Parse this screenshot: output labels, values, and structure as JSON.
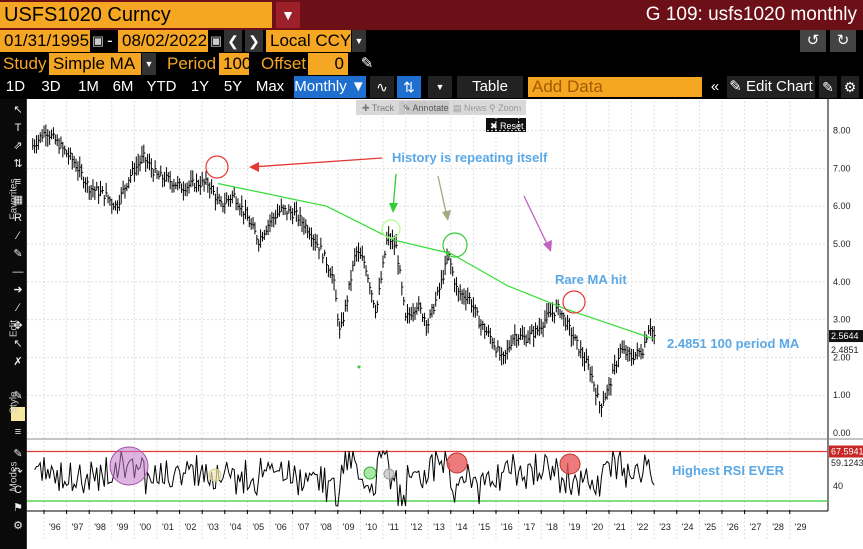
{
  "header": {
    "security": "USFS1020 Curncy",
    "title": "G 109: usfs1020 monthly",
    "dropdown_icon": "chevron-down-icon"
  },
  "range": {
    "start_date": "01/31/1995",
    "dash": "-",
    "end_date": "08/02/2022",
    "currency": "Local CCY"
  },
  "study": {
    "study_label": "Study",
    "study_value": "Simple MA",
    "period_label": "Period",
    "period_value": "100",
    "offset_label": "Offset",
    "offset_value": "0"
  },
  "toolbar": {
    "periods": [
      "1D",
      "3D",
      "1M",
      "6M",
      "YTD",
      "1Y",
      "5Y",
      "Max"
    ],
    "frequency": "Monthly ▼",
    "table_label": "Table",
    "add_data_placeholder": "Add Data",
    "edit_chart_label": "Edit Chart"
  },
  "subtoolbar": {
    "track": "Track",
    "annotate": "Annotate",
    "news": "News",
    "zoom": "Zoom",
    "reset": "Reset"
  },
  "side_labels": {
    "favorites": "Favorites",
    "edit": "Edit",
    "style": "Style",
    "modes": "Modes"
  },
  "annotations": {
    "history": "History is repeating itself",
    "rare": "Rare MA hit",
    "ma_note": "2.4851 100 period MA",
    "rsi_note": "Highest RSI EVER"
  },
  "colors": {
    "price": "#000000",
    "ma": "#33dd33",
    "annotation_text": "#5aa8e6",
    "circle_red": "#e53935",
    "rsi_upper": "#e53935",
    "rsi_lower": "#33cc33",
    "bloomberg_orange": "#f5a623",
    "title_bar": "#6d0f17"
  },
  "chart_data": [
    {
      "type": "line",
      "ylim": [
        -0.1,
        8.6
      ],
      "y_ticks": [
        "8.00",
        "7.00",
        "6.00",
        "5.00",
        "4.00",
        "3.00",
        "2.00",
        "1.00",
        "0.00"
      ],
      "last_price_label": "2.5644",
      "ma_label": "2.4851",
      "x_ticks": [
        "'96",
        "'97",
        "'98",
        "'99",
        "'00",
        "'01",
        "'02",
        "'03",
        "'04",
        "'05",
        "'06",
        "'07",
        "'08",
        "'09",
        "'10",
        "'11",
        "'12",
        "'13",
        "'14",
        "'15",
        "'16",
        "'17",
        "'18",
        "'19",
        "'20",
        "'21",
        "'22",
        "'23",
        "'24",
        "'25",
        "'26",
        "'27",
        "'28",
        "'29"
      ],
      "series": [
        {
          "values_anchors": [
            [
              1995.0,
              7.6
            ],
            [
              1995.6,
              8.0
            ],
            [
              1996.2,
              7.6
            ],
            [
              1996.8,
              7.2
            ],
            [
              1997.5,
              6.5
            ],
            [
              1998.2,
              6.3
            ],
            [
              1998.7,
              6.0
            ],
            [
              1999.3,
              6.8
            ],
            [
              1999.9,
              7.3
            ],
            [
              2000.5,
              6.8
            ],
            [
              2001.0,
              6.7
            ],
            [
              2001.6,
              6.5
            ],
            [
              2002.2,
              6.6
            ],
            [
              2002.8,
              6.6
            ],
            [
              2003.3,
              6.0
            ],
            [
              2003.9,
              6.3
            ],
            [
              2004.4,
              5.8
            ],
            [
              2005.0,
              5.1
            ],
            [
              2005.5,
              5.6
            ],
            [
              2006.0,
              5.9
            ],
            [
              2006.6,
              5.8
            ],
            [
              2007.2,
              5.4
            ],
            [
              2007.8,
              4.8
            ],
            [
              2008.3,
              4.1
            ],
            [
              2008.6,
              2.6
            ],
            [
              2008.9,
              3.5
            ],
            [
              2009.3,
              4.8
            ],
            [
              2009.7,
              4.5
            ],
            [
              2010.2,
              3.2
            ],
            [
              2010.7,
              5.2
            ],
            [
              2011.1,
              4.9
            ],
            [
              2011.5,
              3.0
            ],
            [
              2012.0,
              3.4
            ],
            [
              2012.5,
              2.9
            ],
            [
              2013.0,
              3.8
            ],
            [
              2013.4,
              4.7
            ],
            [
              2013.8,
              3.7
            ],
            [
              2014.3,
              3.6
            ],
            [
              2014.8,
              2.9
            ],
            [
              2015.3,
              2.5
            ],
            [
              2015.8,
              1.9
            ],
            [
              2016.3,
              2.6
            ],
            [
              2016.8,
              2.5
            ],
            [
              2017.3,
              2.7
            ],
            [
              2017.8,
              3.1
            ],
            [
              2018.3,
              3.3
            ],
            [
              2018.7,
              2.8
            ],
            [
              2019.2,
              2.2
            ],
            [
              2019.7,
              1.6
            ],
            [
              2020.1,
              0.7
            ],
            [
              2020.5,
              1.2
            ],
            [
              2021.0,
              2.2
            ],
            [
              2021.5,
              2.0
            ],
            [
              2022.0,
              2.2
            ],
            [
              2022.3,
              2.9
            ],
            [
              2022.5,
              2.56
            ]
          ]
        },
        {
          "values_anchors": [
            [
              2003.2,
              6.6
            ],
            [
              2008.0,
              6.0
            ],
            [
              2011.0,
              5.1
            ],
            [
              2013.5,
              4.75
            ],
            [
              2016.0,
              3.9
            ],
            [
              2018.5,
              3.3
            ],
            [
              2022.5,
              2.4851
            ]
          ]
        }
      ]
    },
    {
      "type": "line",
      "y_ticks": [
        "40"
      ],
      "upper_label": "67.5941",
      "rsi_label": "59.1243",
      "lines": {
        "upper": 67.5941,
        "lower": 28
      }
    }
  ]
}
